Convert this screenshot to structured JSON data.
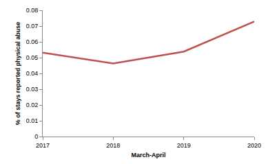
{
  "chart_data": {
    "type": "line",
    "x_label": "March-April",
    "y_label": "% of stays reported physical abuse",
    "categories": [
      "2017",
      "2018",
      "2019",
      "2020"
    ],
    "values": [
      0.0532,
      0.0463,
      0.0538,
      0.0729
    ],
    "color": "#c0504d",
    "ylim": [
      0,
      0.08
    ],
    "yticks": [
      0,
      0.01,
      0.02,
      0.03,
      0.04,
      0.05,
      0.06,
      0.07,
      0.08
    ],
    "grid": false
  }
}
